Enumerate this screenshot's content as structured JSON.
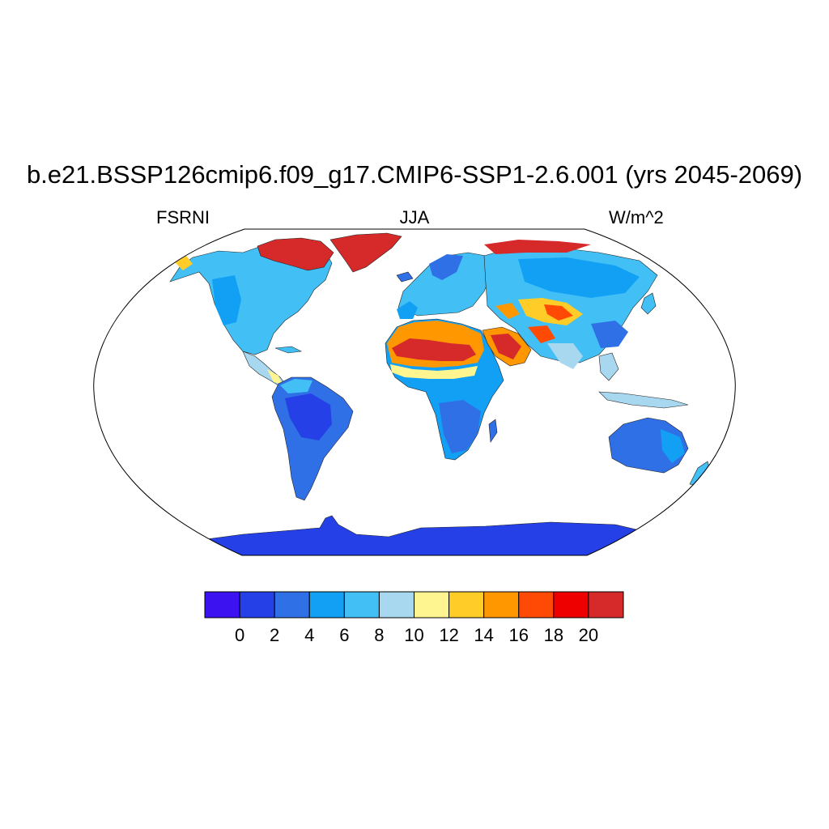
{
  "title": "b.e21.BSSP126cmip6.f09_g17.CMIP6-SSP1-2.6.001 (yrs 2045-2069)",
  "left_subtitle": "FSRNI",
  "center_subtitle": "JJA",
  "right_subtitle": "W/m^2",
  "chart_data": {
    "type": "heatmap",
    "projection": "robinson",
    "variable": "FSRNI",
    "season": "JJA",
    "units": "W/m^2",
    "colorbar": {
      "levels": [
        0,
        2,
        4,
        6,
        8,
        10,
        12,
        14,
        16,
        18,
        20
      ],
      "tick_labels": [
        "0",
        "2",
        "4",
        "6",
        "8",
        "10",
        "12",
        "14",
        "16",
        "18",
        "20"
      ],
      "colors": [
        "#3d12f0",
        "#2440e6",
        "#3070e6",
        "#12a0f5",
        "#42c0f5",
        "#a8d8ef",
        "#fff590",
        "#ffcc28",
        "#ff9800",
        "#ff4a05",
        "#ee0000",
        "#d62a2a"
      ]
    }
  }
}
